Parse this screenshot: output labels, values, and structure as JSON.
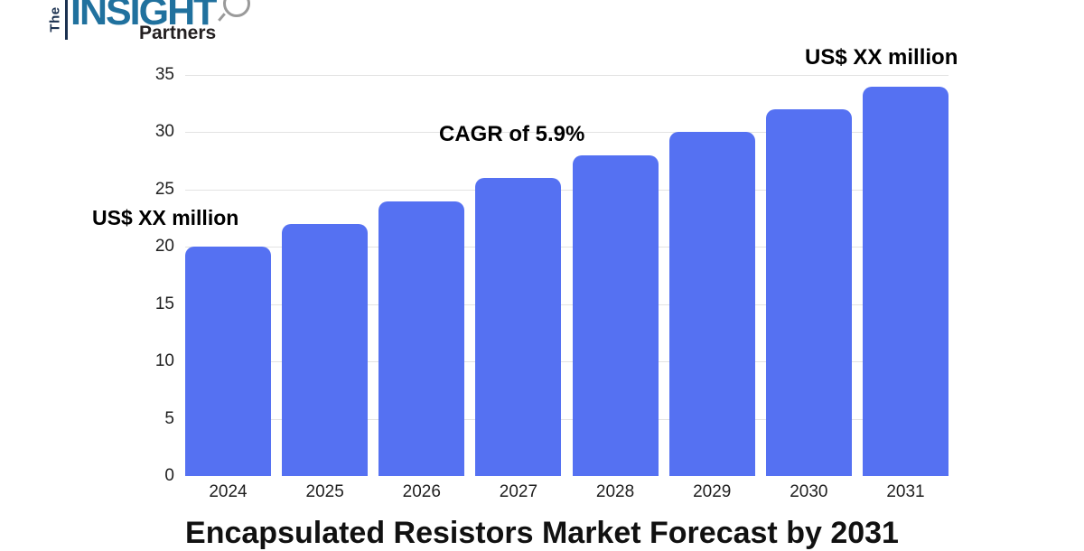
{
  "logo": {
    "the": "The",
    "insight": "INSIGHT",
    "partners": "Partners",
    "the_color": "#1b3150",
    "insight_color": "#20719E",
    "partners_color": "#231f20"
  },
  "chart_data": {
    "type": "bar",
    "categories": [
      "2024",
      "2025",
      "2026",
      "2027",
      "2028",
      "2029",
      "2030",
      "2031"
    ],
    "values": [
      20,
      22,
      24,
      26,
      28,
      30,
      32,
      34
    ],
    "title": "Encapsulated Resistors Market Forecast by 2031",
    "xlabel": "",
    "ylabel": "",
    "ylim": [
      0,
      35
    ],
    "yticks": [
      0,
      5,
      10,
      15,
      20,
      25,
      30,
      35
    ],
    "grid": true,
    "legend": "none",
    "bar_color": "#5571F2",
    "gridline_color": "#E3E3E3",
    "annotations": [
      {
        "text": "US$ XX million",
        "target": "first-bar-2024"
      },
      {
        "text": "CAGR of 5.9%",
        "target": "middle"
      },
      {
        "text": "US$ XX million",
        "target": "last-bar-2031"
      }
    ]
  }
}
